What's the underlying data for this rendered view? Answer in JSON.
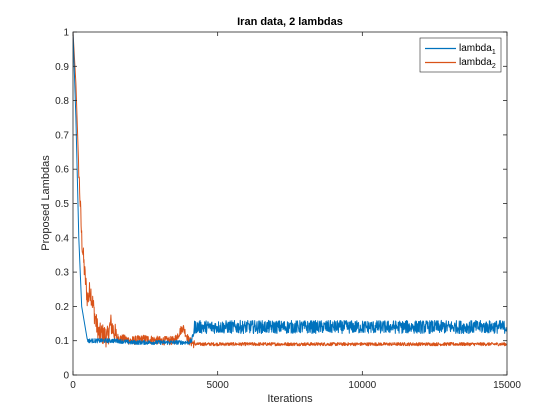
{
  "chart_data": {
    "type": "line",
    "title": "Iran data, 2 lambdas",
    "xlabel": "Iterations",
    "ylabel": "Proposed Lambdas",
    "xlim": [
      0,
      15000
    ],
    "ylim": [
      0,
      1
    ],
    "xticks": [
      0,
      5000,
      10000,
      15000
    ],
    "xtick_labels": [
      "0",
      "5000",
      "10000",
      "15000"
    ],
    "yticks": [
      0,
      0.1,
      0.2,
      0.3,
      0.4,
      0.5,
      0.6,
      0.7,
      0.8,
      0.9,
      1
    ],
    "ytick_labels": [
      "0",
      "0.1",
      "0.2",
      "0.3",
      "0.4",
      "0.5",
      "0.6",
      "0.7",
      "0.8",
      "0.9",
      "1"
    ],
    "grid": false,
    "legend_position": "top-right",
    "series": [
      {
        "name": "lambda",
        "name_subscript": "1",
        "color": "#0072BD",
        "x": [
          0,
          100,
          200,
          300,
          400,
          500,
          700,
          1000,
          1500,
          2000,
          2500,
          3000,
          3500,
          4000,
          4100,
          4200,
          5000,
          6000,
          7000,
          8000,
          9000,
          10000,
          11000,
          12000,
          13000,
          14000,
          15000
        ],
        "y": [
          1.0,
          0.75,
          0.4,
          0.2,
          0.15,
          0.1,
          0.1,
          0.1,
          0.1,
          0.095,
          0.095,
          0.095,
          0.095,
          0.095,
          0.1,
          0.14,
          0.14,
          0.14,
          0.14,
          0.14,
          0.14,
          0.14,
          0.14,
          0.14,
          0.14,
          0.14,
          0.14
        ]
      },
      {
        "name": "lambda",
        "name_subscript": "2",
        "color": "#D95319",
        "x": [
          0,
          100,
          200,
          300,
          400,
          500,
          600,
          700,
          800,
          900,
          1000,
          1200,
          1300,
          1500,
          2000,
          2500,
          3000,
          3500,
          3800,
          4000,
          4200,
          5000,
          6000,
          7000,
          8000,
          9000,
          10000,
          11000,
          12000,
          13000,
          14000,
          15000
        ],
        "y": [
          1.0,
          0.85,
          0.6,
          0.4,
          0.3,
          0.22,
          0.25,
          0.2,
          0.15,
          0.12,
          0.12,
          0.11,
          0.15,
          0.11,
          0.1,
          0.105,
          0.1,
          0.1,
          0.14,
          0.1,
          0.09,
          0.09,
          0.09,
          0.09,
          0.09,
          0.09,
          0.09,
          0.09,
          0.09,
          0.09,
          0.09,
          0.09
        ]
      }
    ]
  }
}
